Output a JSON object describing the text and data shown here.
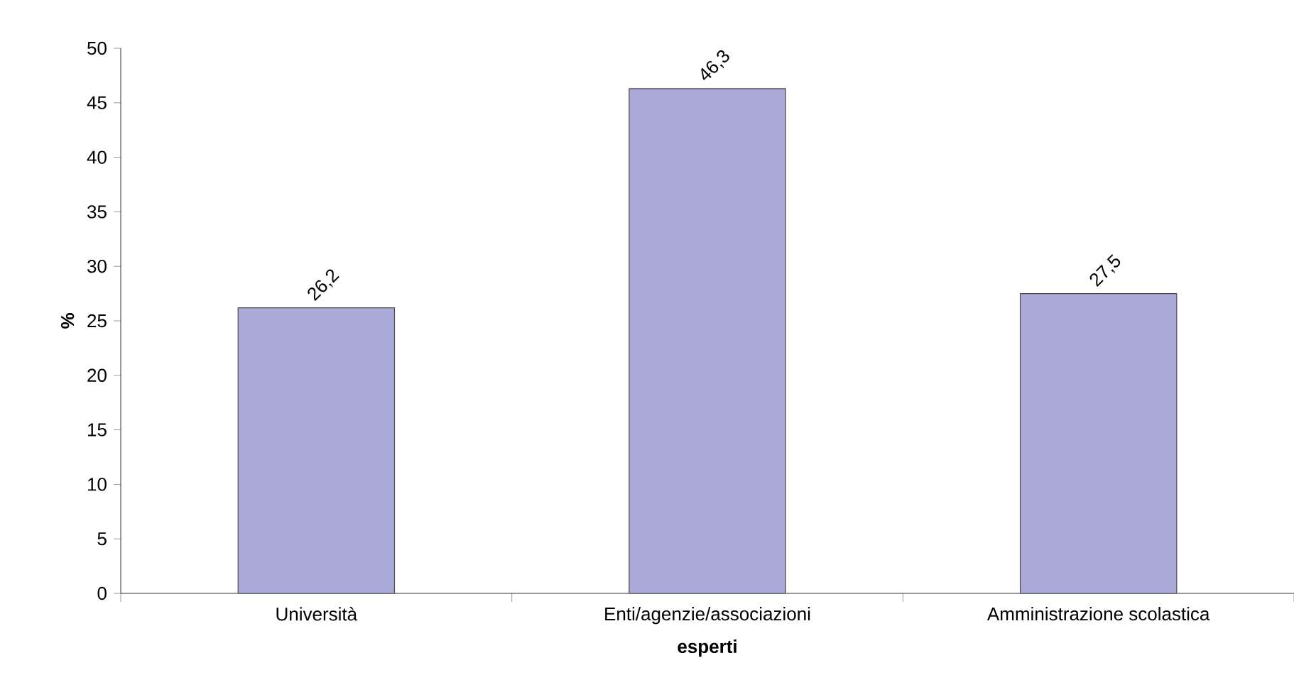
{
  "chart_data": {
    "type": "bar",
    "xlabel": "esperti",
    "ylabel": "%",
    "categories": [
      "Università",
      "Enti/agenzie/associazioni",
      "Amministrazione scolastica"
    ],
    "values": [
      26.2,
      46.3,
      27.5
    ],
    "value_labels": [
      "26,2",
      "46,3",
      "27,5"
    ],
    "color": "#aaaad8",
    "ylim": [
      0,
      50
    ],
    "yticks": [
      0,
      5,
      10,
      15,
      20,
      25,
      30,
      35,
      40,
      45,
      50
    ],
    "grid": false
  }
}
